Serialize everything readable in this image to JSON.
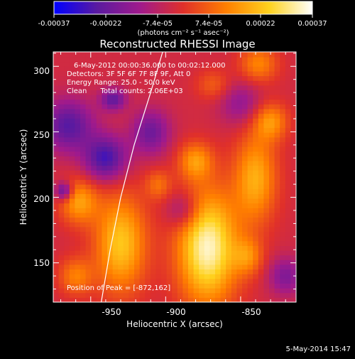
{
  "chart_data": {
    "type": "heatmap",
    "title": "Reconstructed RHESSI Image",
    "xlabel": "Heliocentric X (arcsec)",
    "ylabel": "Heliocentric Y (arcsec)",
    "x_ticks": [
      "-950",
      "-900",
      "-850"
    ],
    "y_ticks": [
      "150",
      "200",
      "250",
      "300"
    ],
    "xlim": [
      -975,
      -813
    ],
    "ylim": [
      120,
      311
    ],
    "colorbar": {
      "ticks": [
        "-0.00037",
        "-0.00022",
        "-7.4e-05",
        "7.4e-05",
        "0.00022",
        "0.00037"
      ],
      "range": [
        -0.00037,
        0.00037
      ],
      "unit_label": "(photons cm⁻² s⁻¹ asec⁻²)",
      "stops": [
        "#0000ff",
        "#5a1aa0",
        "#a01a8c",
        "#e0302a",
        "#ff7f00",
        "#ffd21e",
        "#ffffff"
      ]
    },
    "annotations": [
      "6-May-2012 00:00:36.000 to 00:02:12.000",
      "Detectors: 3F 5F 6F 7F 8F 9F, Att 0",
      "Energy Range: 25.0 - 50.0 keV",
      "Clean      Total counts: 2.06E+03"
    ],
    "peak_label": "Position of Peak = [-872,162]",
    "peak": [
      -872,
      162
    ],
    "limb_arc": [
      [
        -943,
        120
      ],
      [
        -937,
        160
      ],
      [
        -930,
        200
      ],
      [
        -921,
        240
      ],
      [
        -910,
        280
      ],
      [
        -902,
        311
      ]
    ],
    "blobs": [
      {
        "x": -872,
        "y": 162,
        "sx": 14,
        "sy": 30,
        "v": 0.00037
      },
      {
        "x": -930,
        "y": 165,
        "sx": 12,
        "sy": 26,
        "v": 0.00026
      },
      {
        "x": -960,
        "y": 140,
        "sx": 8,
        "sy": 10,
        "v": 0.00015
      },
      {
        "x": -958,
        "y": 197,
        "sx": 9,
        "sy": 12,
        "v": 0.0002
      },
      {
        "x": -880,
        "y": 228,
        "sx": 8,
        "sy": 10,
        "v": 0.00018
      },
      {
        "x": -840,
        "y": 215,
        "sx": 10,
        "sy": 24,
        "v": 0.00022
      },
      {
        "x": -830,
        "y": 258,
        "sx": 8,
        "sy": 10,
        "v": 0.00018
      },
      {
        "x": -838,
        "y": 302,
        "sx": 9,
        "sy": 10,
        "v": 0.00016
      },
      {
        "x": -868,
        "y": 286,
        "sx": 8,
        "sy": 8,
        "v": 0.0001
      },
      {
        "x": -905,
        "y": 210,
        "sx": 6,
        "sy": 8,
        "v": 0.00012
      },
      {
        "x": -845,
        "y": 155,
        "sx": 7,
        "sy": 10,
        "v": 0.00014
      },
      {
        "x": -940,
        "y": 230,
        "sx": 10,
        "sy": 12,
        "v": -0.00025
      },
      {
        "x": -965,
        "y": 255,
        "sx": 12,
        "sy": 14,
        "v": -0.00022
      },
      {
        "x": -935,
        "y": 275,
        "sx": 6,
        "sy": 6,
        "v": -0.0002
      },
      {
        "x": -968,
        "y": 205,
        "sx": 4,
        "sy": 5,
        "v": -0.00024
      },
      {
        "x": -910,
        "y": 250,
        "sx": 9,
        "sy": 12,
        "v": -0.00018
      },
      {
        "x": -888,
        "y": 190,
        "sx": 8,
        "sy": 10,
        "v": -0.00014
      },
      {
        "x": -820,
        "y": 140,
        "sx": 8,
        "sy": 10,
        "v": -0.00015
      },
      {
        "x": -850,
        "y": 272,
        "sx": 10,
        "sy": 12,
        "v": -0.00012
      }
    ]
  },
  "timestamp": "5-May-2014 15:47"
}
